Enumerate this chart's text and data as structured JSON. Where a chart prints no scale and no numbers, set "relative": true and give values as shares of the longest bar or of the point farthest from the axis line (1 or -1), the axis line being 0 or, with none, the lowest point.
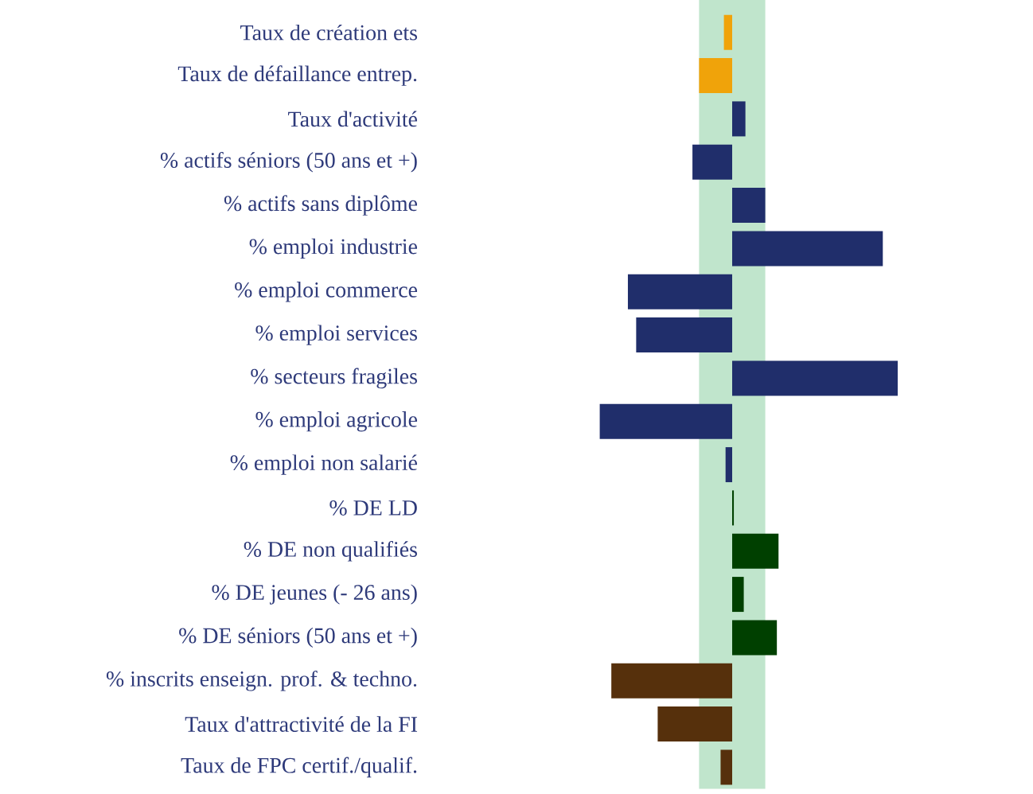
{
  "chart_data": {
    "type": "bar",
    "orientation": "horizontal",
    "relative": true,
    "categories": [
      "Taux de création ets",
      "Taux de défaillance entrep.",
      "Taux d'activité",
      "% actifs séniors (50 ans et +)",
      "% actifs sans diplôme",
      "% emploi industrie",
      "% emploi commerce",
      "% emploi services",
      "% secteurs fragiles",
      "% emploi agricole",
      "% emploi non salarié",
      "% DE LD",
      "% DE non qualifiés",
      "% DE jeunes (- 26 ans)",
      "% DE séniors (50 ans et +)",
      "% inscrits enseign. prof. & techno.",
      "Taux d'attractivité de la FI",
      "Taux de FPC certif./qualif."
    ],
    "values": [
      -0.05,
      -0.2,
      0.08,
      -0.24,
      0.2,
      0.91,
      -0.63,
      -0.58,
      1.0,
      -0.8,
      -0.04,
      0.01,
      0.28,
      0.07,
      0.27,
      -0.73,
      -0.45,
      -0.07
    ],
    "colors": [
      "#f0a30a",
      "#f0a30a",
      "#202e6b",
      "#202e6b",
      "#202e6b",
      "#202e6b",
      "#202e6b",
      "#202e6b",
      "#202e6b",
      "#202e6b",
      "#202e6b",
      "#004000",
      "#004000",
      "#004000",
      "#004000",
      "#56300c",
      "#56300c",
      "#56300c"
    ],
    "bands": [
      {
        "axis": "x",
        "from": -0.2,
        "to": 0.2,
        "color": "#c0e5cc"
      }
    ]
  }
}
